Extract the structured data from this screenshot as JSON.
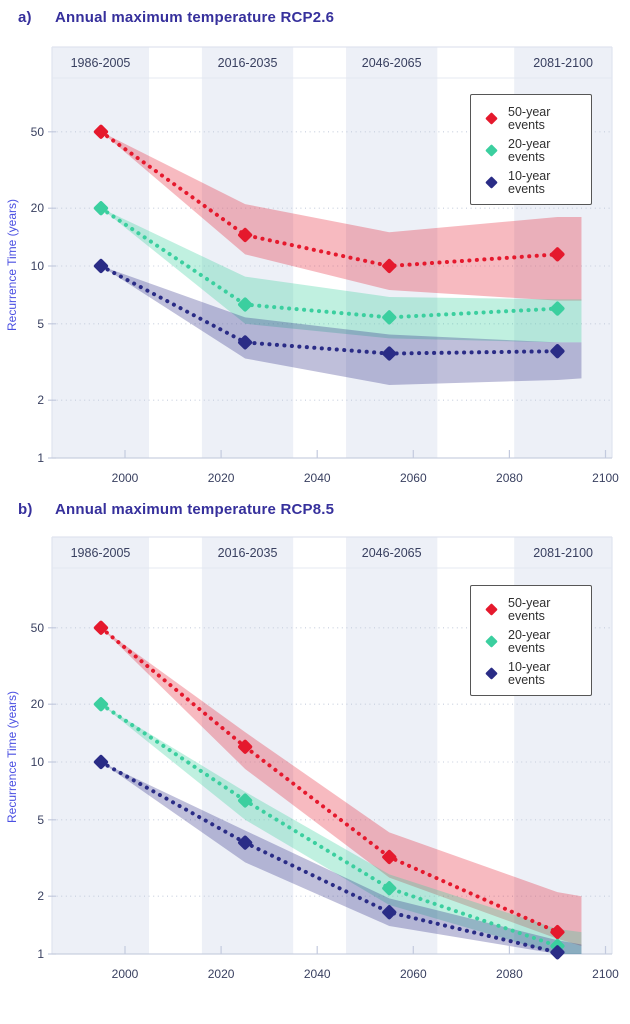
{
  "colors": {
    "red": "#e5192d",
    "green": "#3bcf9f",
    "navy": "#2a2c86",
    "red_band": "rgba(229,25,45,0.30)",
    "green_band": "rgba(59,207,159,0.32)",
    "navy_band": "rgba(42,44,134,0.30)",
    "column_band": "#edf0f7",
    "grid_dots": "#c6cedd",
    "axis_line": "#c9d0e0",
    "frame": "#e0e4ef",
    "header_rule": "#e4e8f2",
    "tick_mark": "#c3cade",
    "tick_text": "#394060",
    "title_text": "#36309c",
    "y_axis_label_text": "#4b50e2",
    "legend_border": "#565656",
    "legend_text": "#303030",
    "page_bg": "#ffffff"
  },
  "legend": [
    "50-year events",
    "20-year events",
    "10-year events"
  ],
  "chart_data": [
    {
      "type": "line",
      "panel_label": "a)",
      "title": "Annual maximum temperature RCP2.6",
      "xlabel": "",
      "ylabel": "Recurrence Time (years)",
      "y_scale": "log",
      "grid": "horizontal-dotted",
      "legend_position": "top-right",
      "x_ticks": [
        2000,
        2020,
        2040,
        2060,
        2080,
        2100
      ],
      "y_ticks": [
        50,
        20,
        10,
        5,
        2,
        1
      ],
      "xlim": [
        1985,
        2101
      ],
      "ylim": [
        1,
        100
      ],
      "periods": [
        {
          "label": "1986-2005",
          "start": 1986,
          "end": 2005
        },
        {
          "label": "2016-2035",
          "start": 2016,
          "end": 2035
        },
        {
          "label": "2046-2065",
          "start": 2046,
          "end": 2065
        },
        {
          "label": "2081-2100",
          "start": 2081,
          "end": 2100
        }
      ],
      "x": [
        1995,
        2025,
        2055,
        2090
      ],
      "band_x": [
        1995,
        2025,
        2055,
        2090,
        2095
      ],
      "series": [
        {
          "name": "50-year events",
          "color_key": "red",
          "values": [
            50,
            14.5,
            10,
            11.5
          ],
          "band_upper": [
            50,
            21,
            15,
            18,
            18
          ],
          "band_lower": [
            50,
            11.5,
            7.5,
            6.6,
            6.6
          ]
        },
        {
          "name": "20-year events",
          "color_key": "green",
          "values": [
            20,
            6.3,
            5.4,
            6.0
          ],
          "band_upper": [
            20,
            8.8,
            6.9,
            6.7,
            6.7
          ],
          "band_lower": [
            20,
            5.0,
            4.2,
            4.0,
            4.0
          ]
        },
        {
          "name": "10-year events",
          "color_key": "navy",
          "values": [
            10,
            4.0,
            3.5,
            3.6
          ],
          "band_upper": [
            10,
            5.4,
            4.4,
            4.0,
            4.0
          ],
          "band_lower": [
            10,
            3.3,
            2.4,
            2.55,
            2.6
          ]
        }
      ]
    },
    {
      "type": "line",
      "panel_label": "b)",
      "title": "Annual maximum temperature RCP8.5",
      "xlabel": "",
      "ylabel": "Recurrence Time (years)",
      "y_scale": "log",
      "grid": "horizontal-dotted",
      "legend_position": "top-right",
      "x_ticks": [
        2000,
        2020,
        2040,
        2060,
        2080,
        2100
      ],
      "y_ticks": [
        50,
        20,
        10,
        5,
        2,
        1
      ],
      "xlim": [
        1985,
        2101
      ],
      "ylim": [
        1,
        100
      ],
      "periods": [
        {
          "label": "1986-2005",
          "start": 1986,
          "end": 2005
        },
        {
          "label": "2016-2035",
          "start": 2016,
          "end": 2035
        },
        {
          "label": "2046-2065",
          "start": 2046,
          "end": 2065
        },
        {
          "label": "2081-2100",
          "start": 2081,
          "end": 2100
        }
      ],
      "x": [
        1995,
        2025,
        2055,
        2090
      ],
      "band_x": [
        1995,
        2025,
        2055,
        2090,
        2095
      ],
      "series": [
        {
          "name": "50-year events",
          "color_key": "red",
          "values": [
            50,
            12,
            3.2,
            1.3
          ],
          "band_upper": [
            50,
            14.3,
            4.3,
            2.1,
            2.0
          ],
          "band_lower": [
            50,
            9.2,
            2.5,
            1.2,
            1.1
          ]
        },
        {
          "name": "20-year events",
          "color_key": "green",
          "values": [
            20,
            6.3,
            2.2,
            1.1
          ],
          "band_upper": [
            20,
            7.0,
            2.6,
            1.35,
            1.3
          ],
          "band_lower": [
            20,
            5.0,
            1.8,
            1.0,
            1.0
          ]
        },
        {
          "name": "10-year events",
          "color_key": "navy",
          "values": [
            10,
            3.8,
            1.65,
            1.02
          ],
          "band_upper": [
            10,
            4.4,
            1.95,
            1.18,
            1.12
          ],
          "band_lower": [
            10,
            3.0,
            1.4,
            1.0,
            1.0
          ]
        }
      ]
    }
  ]
}
